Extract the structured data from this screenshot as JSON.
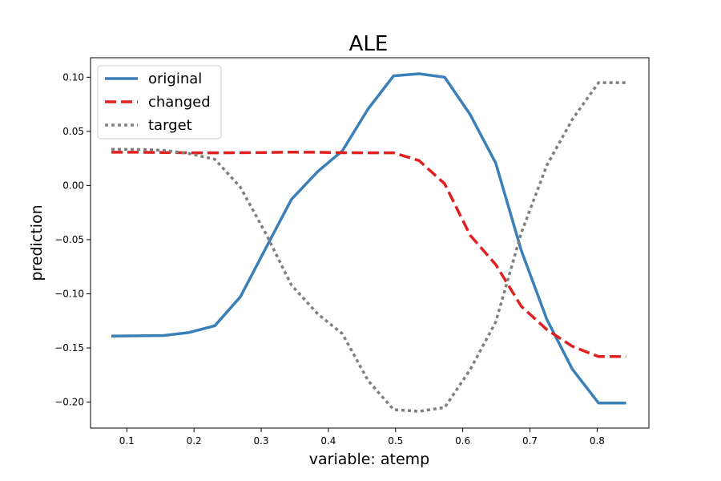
{
  "chart_data": {
    "type": "line",
    "title": "ALE",
    "xlabel": "variable: atemp",
    "ylabel": "prediction",
    "xlim": [
      0.046,
      0.877
    ],
    "ylim": [
      -0.224,
      0.118
    ],
    "xticks": [
      0.1,
      0.2,
      0.3,
      0.4,
      0.5,
      0.6,
      0.7,
      0.8
    ],
    "xtick_labels": [
      "0.1",
      "0.2",
      "0.3",
      "0.4",
      "0.5",
      "0.6",
      "0.7",
      "0.8"
    ],
    "yticks": [
      0.1,
      0.05,
      0.0,
      -0.05,
      -0.1,
      -0.15,
      -0.2
    ],
    "ytick_labels": [
      "0.10",
      "0.05",
      "0.00",
      "−0.05",
      "−0.10",
      "−0.15",
      "−0.20"
    ],
    "grid": false,
    "legend": "top-left",
    "series": [
      {
        "name": "original",
        "color": "#3a7fb8",
        "style": "solid",
        "x": [
          0.077,
          0.116,
          0.155,
          0.193,
          0.231,
          0.269,
          0.307,
          0.345,
          0.384,
          0.421,
          0.459,
          0.497,
          0.535,
          0.573,
          0.611,
          0.649,
          0.687,
          0.725,
          0.763,
          0.802,
          0.843
        ],
        "y": [
          -0.139,
          -0.1388,
          -0.1385,
          -0.1357,
          -0.1295,
          -0.1028,
          -0.0577,
          -0.0128,
          0.0128,
          0.0322,
          0.0706,
          0.1013,
          0.1032,
          0.1,
          0.0655,
          0.0207,
          -0.0597,
          -0.1235,
          -0.1695,
          -0.2008,
          -0.2008
        ]
      },
      {
        "name": "changed",
        "color": "#e02020",
        "style": "dashed",
        "x": [
          0.077,
          0.116,
          0.155,
          0.193,
          0.231,
          0.269,
          0.307,
          0.345,
          0.384,
          0.421,
          0.459,
          0.497,
          0.535,
          0.573,
          0.611,
          0.649,
          0.687,
          0.725,
          0.763,
          0.802,
          0.843
        ],
        "y": [
          0.0307,
          0.0307,
          0.0305,
          0.0302,
          0.0302,
          0.0303,
          0.0305,
          0.0308,
          0.0307,
          0.0303,
          0.0302,
          0.0302,
          0.023,
          0.0016,
          -0.046,
          -0.073,
          -0.1115,
          -0.133,
          -0.1485,
          -0.158,
          -0.158
        ]
      },
      {
        "name": "target",
        "color": "#7f7f7f",
        "style": "dotted",
        "x": [
          0.077,
          0.116,
          0.155,
          0.193,
          0.231,
          0.269,
          0.307,
          0.345,
          0.384,
          0.421,
          0.459,
          0.497,
          0.535,
          0.573,
          0.611,
          0.649,
          0.687,
          0.725,
          0.763,
          0.802,
          0.843
        ],
        "y": [
          0.0335,
          0.0333,
          0.0325,
          0.0295,
          0.0242,
          -0.0015,
          -0.0445,
          -0.092,
          -0.1185,
          -0.137,
          -0.18,
          -0.207,
          -0.2085,
          -0.205,
          -0.17,
          -0.126,
          -0.044,
          0.0185,
          0.061,
          0.095,
          0.095
        ]
      }
    ]
  }
}
